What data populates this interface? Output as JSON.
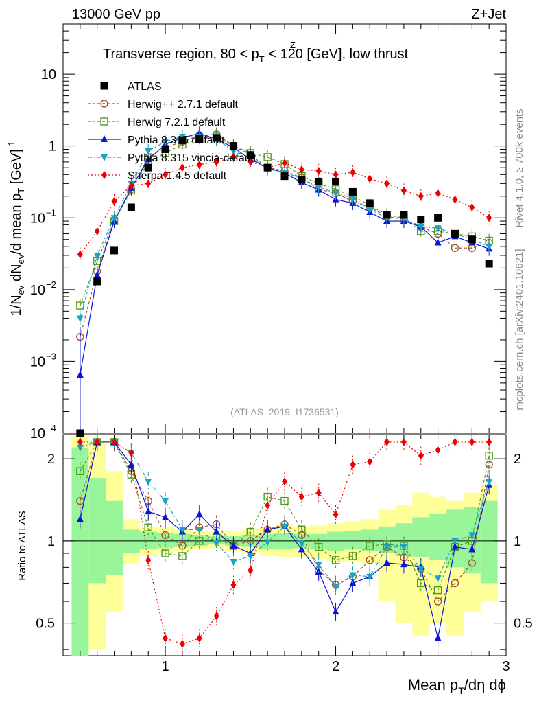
{
  "header": {
    "left": "13000 GeV pp",
    "right": "Z+Jet"
  },
  "side_labels": {
    "rivet": "Rivet 4.1.0, ≥ 700k events",
    "mcplots": "mcplots.cern.ch [arXiv:2401.10621]"
  },
  "colors": {
    "ATLAS": "#000000",
    "Herwig++ 2.7.1 default": "#a0522d",
    "Herwig 7.2.1 default": "#4f9a1d",
    "Pythia 8.315 default": "#0a14d6",
    "Pythia 8.315 vincia-default": "#1aa3c2",
    "Sherpa 1.4.5 default": "#ee0000",
    "band_inner": "#99f599",
    "band_outer": "#ffff99"
  },
  "chart_data": [
    {
      "type": "line",
      "title": "Transverse region, 80 < p_T^Z < 120 [GeV], low thrust",
      "title_parts": {
        "pre": "Transverse region, 80 < p",
        "sub": "T",
        "sup": "Z",
        "post": " < 120 [GeV], low thrust"
      },
      "xlabel": "Mean p_T/dη dϕ",
      "xlabel_parts": {
        "pre": "Mean p",
        "sub": "T",
        "post": "/dη dϕ"
      },
      "ylabel": "1/N_ev dN_ev/d mean p_T [GeV]^-1",
      "ylabel_parts": {
        "a": "1/N",
        "a_sub": "ev",
        "b": " dN",
        "b_sub": "ev",
        "c": "/d mean p",
        "c_sub": "T",
        "d": " [GeV]",
        "d_sup": "-1"
      },
      "yscale": "log",
      "xlim": [
        0.4,
        3.0
      ],
      "ylim": [
        0.0001,
        50
      ],
      "x_ticks": [
        "1",
        "2",
        "3"
      ],
      "y_ticks": [
        {
          "value": 10,
          "label": "10"
        },
        {
          "value": 1,
          "label": "1"
        },
        {
          "value": 0.1,
          "label": "10",
          "sup": "−1"
        },
        {
          "value": 0.01,
          "label": "10",
          "sup": "−2"
        },
        {
          "value": 0.001,
          "label": "10",
          "sup": "−3"
        },
        {
          "value": 0.0001,
          "label": "10",
          "sup": "−4"
        }
      ],
      "annotation": "(ATLAS_2019_I1736531)",
      "legend_position": "top-left",
      "x": [
        0.5,
        0.6,
        0.7,
        0.8,
        0.9,
        1.0,
        1.1,
        1.2,
        1.3,
        1.4,
        1.5,
        1.6,
        1.7,
        1.8,
        1.9,
        2.0,
        2.1,
        2.2,
        2.3,
        2.4,
        2.5,
        2.6,
        2.7,
        2.8,
        2.9
      ],
      "series": [
        {
          "name": "ATLAS",
          "marker": "square-filled",
          "values": [
            0.0001,
            0.013,
            0.035,
            0.14,
            0.5,
            0.9,
            1.2,
            1.25,
            1.3,
            1.0,
            0.75,
            0.5,
            0.38,
            0.34,
            0.32,
            0.32,
            0.23,
            0.16,
            0.11,
            0.11,
            0.095,
            0.1,
            0.06,
            0.05,
            0.023
          ]
        },
        {
          "name": "Herwig++ 2.7.1 default",
          "marker": "circle-open",
          "dash": "4,3",
          "values": [
            0.0022,
            0.018,
            0.09,
            0.25,
            0.7,
            0.95,
            1.15,
            1.4,
            1.45,
            1.0,
            0.75,
            0.5,
            0.45,
            0.36,
            0.25,
            0.22,
            0.17,
            0.14,
            0.105,
            0.095,
            0.075,
            0.06,
            0.038,
            0.038,
            0.045
          ]
        },
        {
          "name": "Herwig 7.2.1 default",
          "marker": "square-open",
          "dash": "4,3",
          "values": [
            0.006,
            0.025,
            0.09,
            0.24,
            0.6,
            0.8,
            1.05,
            1.25,
            1.35,
            1.0,
            0.8,
            0.7,
            0.56,
            0.38,
            0.3,
            0.25,
            0.2,
            0.15,
            0.11,
            0.1,
            0.065,
            0.065,
            0.06,
            0.055,
            0.048
          ]
        },
        {
          "name": "Pythia 8.315 default",
          "marker": "triangle-up",
          "dash": "",
          "values": [
            0.00065,
            0.016,
            0.09,
            0.26,
            0.65,
            1.05,
            1.3,
            1.5,
            1.25,
            0.95,
            0.65,
            0.5,
            0.42,
            0.31,
            0.245,
            0.18,
            0.16,
            0.12,
            0.09,
            0.09,
            0.075,
            0.045,
            0.055,
            0.045,
            0.037
          ]
        },
        {
          "name": "Pythia 8.315 vincia-default",
          "marker": "triangle-down",
          "dash": "6,3,2,3",
          "values": [
            0.004,
            0.03,
            0.1,
            0.3,
            0.85,
            1.15,
            1.35,
            1.35,
            1.25,
            0.85,
            0.7,
            0.48,
            0.43,
            0.35,
            0.27,
            0.22,
            0.19,
            0.13,
            0.1,
            0.1,
            0.075,
            0.072,
            0.06,
            0.05,
            0.04
          ]
        },
        {
          "name": "Sherpa 1.4.5 default",
          "marker": "diamond",
          "dash": "2,3",
          "values": [
            0.031,
            0.065,
            0.17,
            0.28,
            0.3,
            0.4,
            0.5,
            0.55,
            0.6,
            0.7,
            0.6,
            0.5,
            0.58,
            0.47,
            0.45,
            0.4,
            0.43,
            0.35,
            0.3,
            0.24,
            0.2,
            0.22,
            0.18,
            0.14,
            0.1
          ]
        }
      ]
    },
    {
      "type": "line",
      "ylabel": "Ratio to ATLAS",
      "yscale": "log",
      "xlim": [
        0.4,
        3.0
      ],
      "ylim": [
        0.38,
        2.45
      ],
      "y_ticks": [
        {
          "value": 2,
          "label": "2"
        },
        {
          "value": 1,
          "label": "1"
        },
        {
          "value": 0.5,
          "label": "0.5"
        }
      ],
      "reference": 1,
      "bands": {
        "inner": [
          [
            0.1,
            2.2
          ],
          [
            0.7,
            1.7
          ],
          [
            0.75,
            1.4
          ],
          [
            0.9,
            1.1
          ],
          [
            0.93,
            1.08
          ],
          [
            0.94,
            1.07
          ],
          [
            0.95,
            1.06
          ],
          [
            0.96,
            1.05
          ],
          [
            0.97,
            1.04
          ],
          [
            0.96,
            1.04
          ],
          [
            0.95,
            1.05
          ],
          [
            0.93,
            1.06
          ],
          [
            0.93,
            1.07
          ],
          [
            0.94,
            1.06
          ],
          [
            0.93,
            1.06
          ],
          [
            0.92,
            1.08
          ],
          [
            0.93,
            1.09
          ],
          [
            0.92,
            1.1
          ],
          [
            0.9,
            1.13
          ],
          [
            0.88,
            1.16
          ],
          [
            0.87,
            1.22
          ],
          [
            0.85,
            1.26
          ],
          [
            0.8,
            1.3
          ],
          [
            0.76,
            1.33
          ],
          [
            0.7,
            1.4
          ]
        ],
        "outer": [
          [
            0.1,
            3.0
          ],
          [
            0.4,
            2.3
          ],
          [
            0.55,
            1.8
          ],
          [
            0.82,
            1.2
          ],
          [
            0.88,
            1.13
          ],
          [
            0.9,
            1.12
          ],
          [
            0.92,
            1.1
          ],
          [
            0.93,
            1.09
          ],
          [
            0.94,
            1.08
          ],
          [
            0.92,
            1.08
          ],
          [
            0.9,
            1.1
          ],
          [
            0.88,
            1.12
          ],
          [
            0.87,
            1.15
          ],
          [
            0.87,
            1.13
          ],
          [
            0.86,
            1.14
          ],
          [
            0.84,
            1.16
          ],
          [
            0.84,
            1.18
          ],
          [
            0.82,
            1.2
          ],
          [
            0.6,
            1.3
          ],
          [
            0.5,
            1.35
          ],
          [
            0.45,
            1.5
          ],
          [
            0.5,
            1.45
          ],
          [
            0.45,
            1.4
          ],
          [
            0.55,
            1.5
          ],
          [
            0.6,
            1.6
          ]
        ]
      },
      "series": [
        {
          "name": "Herwig++ 2.7.1 default",
          "values": [
            1.4,
            2.3,
            2.3,
            1.8,
            1.4,
            1.05,
            0.96,
            1.12,
            1.15,
            0.96,
            1.0,
            1.1,
            1.15,
            1.05,
            0.78,
            0.69,
            0.74,
            0.85,
            0.95,
            0.87,
            0.79,
            0.6,
            0.7,
            0.83,
            1.9
          ]
        },
        {
          "name": "Herwig 7.2.1 default",
          "values": [
            1.8,
            2.3,
            2.3,
            1.75,
            1.12,
            0.9,
            0.88,
            1.0,
            1.02,
            0.96,
            1.08,
            1.45,
            1.4,
            1.1,
            0.95,
            0.85,
            0.88,
            0.96,
            0.97,
            0.96,
            0.7,
            0.66,
            0.95,
            1.0,
            2.05
          ]
        },
        {
          "name": "Pythia 8.315 default",
          "values": [
            1.2,
            2.3,
            2.3,
            1.9,
            1.28,
            1.22,
            1.08,
            1.25,
            1.08,
            0.96,
            0.9,
            1.1,
            1.13,
            0.93,
            0.77,
            0.55,
            0.7,
            0.74,
            0.83,
            0.82,
            0.8,
            0.44,
            0.95,
            0.93,
            1.6
          ]
        },
        {
          "name": "Pythia 8.315 vincia-default",
          "values": [
            2.2,
            2.3,
            2.3,
            2.1,
            1.65,
            1.4,
            1.1,
            1.1,
            0.98,
            0.84,
            0.88,
            0.99,
            1.13,
            0.98,
            0.82,
            0.68,
            0.75,
            0.74,
            0.95,
            0.95,
            0.79,
            0.73,
            1.0,
            1.05,
            1.65
          ]
        },
        {
          "name": "Sherpa 1.4.5 default",
          "values": [
            2.3,
            2.3,
            2.3,
            2.1,
            0.85,
            0.44,
            0.42,
            0.44,
            0.53,
            0.69,
            0.78,
            1.35,
            1.65,
            1.45,
            1.5,
            1.25,
            1.9,
            1.95,
            2.3,
            2.3,
            2.05,
            2.15,
            2.3,
            2.3,
            2.3
          ]
        }
      ]
    }
  ]
}
